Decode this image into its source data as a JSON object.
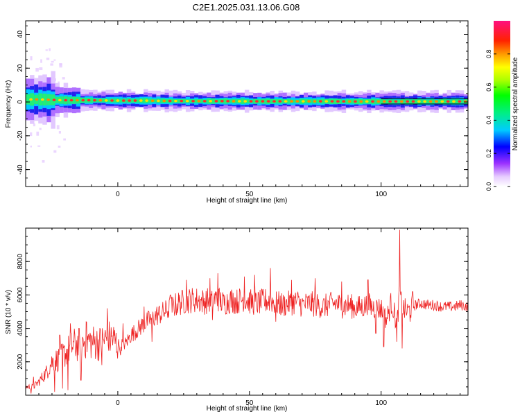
{
  "title": "C2E1.2025.031.13.06.G08",
  "colors": {
    "snr_line": "#ee2222",
    "trace_line": "#000000",
    "frame": "#000000"
  },
  "chart_data": [
    {
      "type": "heatmap",
      "xlabel": "Height of straight line (km)",
      "ylabel": "Frequency (Hz)",
      "xlim": [
        -35,
        133
      ],
      "ylim": [
        -50,
        48
      ],
      "xticks": [
        0,
        50,
        100
      ],
      "xtick_labels": [
        "0",
        "50",
        "100"
      ],
      "yticks": [
        -40,
        -20,
        0,
        20,
        40
      ],
      "ytick_labels": [
        "-40",
        "-20",
        "0",
        "20",
        "40"
      ],
      "ridge": {
        "x": [
          -35,
          -30,
          -25,
          -20,
          -10,
          0,
          10,
          20,
          30,
          40,
          50,
          60,
          70,
          80,
          90,
          100,
          110,
          120,
          133
        ],
        "frequency": [
          1.5,
          1.5,
          1.2,
          1.0,
          1.0,
          0.8,
          0.8,
          0.6,
          0.5,
          0.5,
          0.4,
          0.4,
          0.4,
          0.4,
          0.3,
          0.3,
          0.3,
          0.3,
          0.3
        ]
      },
      "colorbar": {
        "label": "Normalized spectral amplitude",
        "range": [
          0,
          1
        ],
        "ticks": [
          0.0,
          0.2,
          0.4,
          0.6,
          0.8
        ],
        "tick_labels": [
          "0.0",
          "0.2",
          "0.4",
          "0.6",
          "0.8"
        ]
      },
      "grid": false
    },
    {
      "type": "line",
      "xlabel": "Height of straight line (km)",
      "ylabel": "SNR (10 * v/v)",
      "xlim": [
        -35,
        133
      ],
      "ylim": [
        0,
        10000
      ],
      "xticks": [
        0,
        50,
        100
      ],
      "xtick_labels": [
        "0",
        "50",
        "100"
      ],
      "yticks": [
        2000,
        4000,
        6000,
        8000
      ],
      "ytick_labels": [
        "2000",
        "4000",
        "6000",
        "8000"
      ],
      "series": [
        {
          "x": [
            -35,
            -32,
            -30,
            -27,
            -25,
            -22,
            -20,
            -17,
            -15,
            -12,
            -10,
            -7,
            -5,
            -2,
            0,
            3,
            5,
            8,
            10,
            13,
            15,
            18,
            20,
            23,
            25,
            28,
            30,
            33,
            35,
            38,
            40,
            43,
            45,
            48,
            50,
            53,
            55,
            58,
            60,
            63,
            65,
            68,
            70,
            73,
            75,
            78,
            80,
            83,
            85,
            88,
            90,
            93,
            95,
            98,
            100,
            102,
            104,
            106,
            107,
            108,
            110,
            113,
            115,
            118,
            120,
            123,
            125,
            128,
            130,
            133
          ],
          "y": [
            500,
            500,
            800,
            1400,
            2000,
            2200,
            2500,
            3000,
            3000,
            3300,
            3200,
            3100,
            3300,
            3400,
            3000,
            3100,
            3600,
            4000,
            4300,
            4600,
            4800,
            5000,
            5200,
            5500,
            5600,
            5700,
            5700,
            5600,
            5700,
            5800,
            5500,
            5700,
            5600,
            5800,
            5600,
            5500,
            5600,
            5700,
            5500,
            5400,
            5500,
            5600,
            5400,
            5500,
            5400,
            5300,
            5400,
            5500,
            5300,
            5400,
            5200,
            5300,
            5400,
            5200,
            5200,
            4500,
            5600,
            4200,
            6000,
            5200,
            5000,
            5400,
            5500,
            5400,
            5400,
            5300,
            5300,
            5300,
            5400,
            5300
          ],
          "spikes": [
            {
              "x": -32,
              "y": 1100
            },
            {
              "x": -22,
              "y": 3600
            },
            {
              "x": -18,
              "y": 4300
            },
            {
              "x": -12,
              "y": 4400
            },
            {
              "x": -4,
              "y": 5200
            },
            {
              "x": 2,
              "y": 4300
            },
            {
              "x": 10,
              "y": 5300
            },
            {
              "x": 20,
              "y": 6000
            },
            {
              "x": 26,
              "y": 6900
            },
            {
              "x": 35,
              "y": 7000
            },
            {
              "x": 38,
              "y": 7300
            },
            {
              "x": 48,
              "y": 7100
            },
            {
              "x": 52,
              "y": 7200
            },
            {
              "x": 58,
              "y": 7600
            },
            {
              "x": 66,
              "y": 6900
            },
            {
              "x": 75,
              "y": 7000
            },
            {
              "x": 85,
              "y": 6800
            },
            {
              "x": 95,
              "y": 6900
            },
            {
              "x": 101,
              "y": 7200
            },
            {
              "x": 107,
              "y": 9900
            },
            {
              "x": 112,
              "y": 6200
            }
          ],
          "dips": [
            {
              "x": -33,
              "y": 100
            },
            {
              "x": -24,
              "y": 200
            },
            {
              "x": -21,
              "y": 400
            },
            {
              "x": -19,
              "y": 300
            },
            {
              "x": -14,
              "y": 900
            },
            {
              "x": -6,
              "y": 1800
            },
            {
              "x": 1,
              "y": 2400
            },
            {
              "x": 13,
              "y": 3200
            },
            {
              "x": 36,
              "y": 4500
            },
            {
              "x": 60,
              "y": 4400
            },
            {
              "x": 98,
              "y": 3700
            },
            {
              "x": 101,
              "y": 2900
            },
            {
              "x": 106,
              "y": 3200
            },
            {
              "x": 108,
              "y": 2800
            },
            {
              "x": 111,
              "y": 4400
            }
          ]
        }
      ],
      "grid": false
    }
  ]
}
